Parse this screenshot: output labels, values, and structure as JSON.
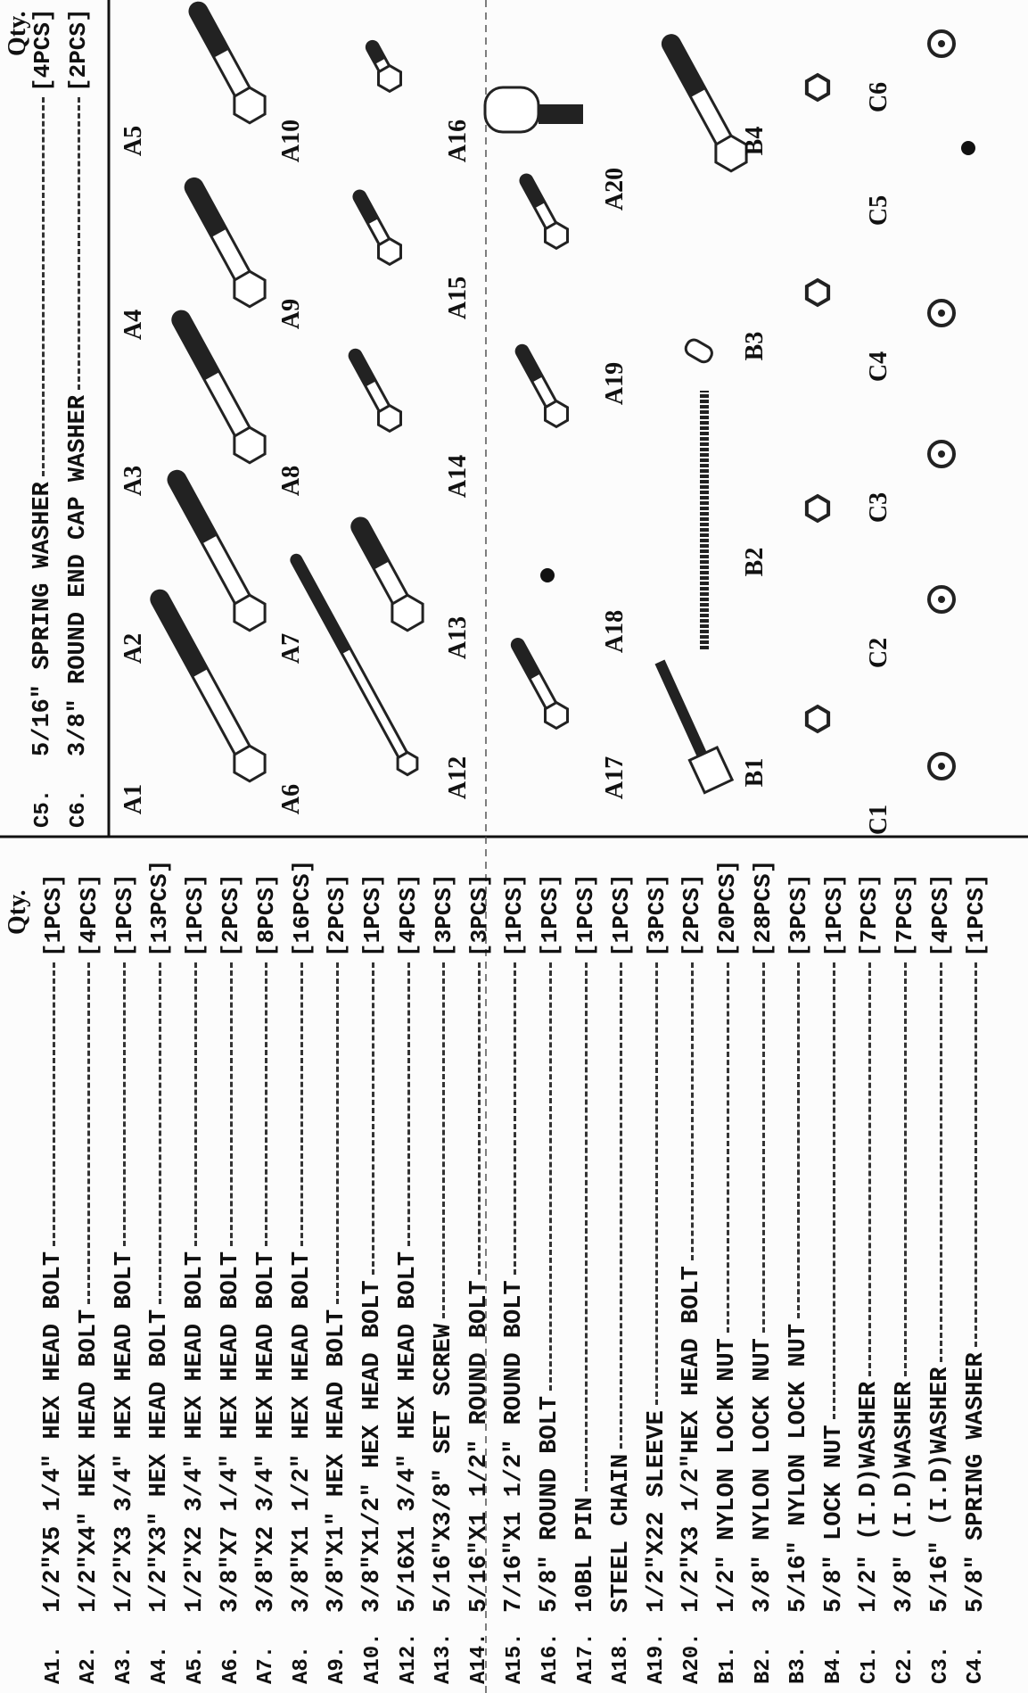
{
  "left": {
    "qty_header": "Qty.",
    "items": [
      {
        "code": "A1.",
        "desc": "1/2\"X5 1/4\" HEX HEAD BOLT",
        "qty": "[1PCS]"
      },
      {
        "code": "A2.",
        "desc": "1/2\"X4\" HEX HEAD BOLT",
        "qty": "[4PCS]"
      },
      {
        "code": "A3.",
        "desc": "1/2\"X3 3/4\" HEX HEAD BOLT",
        "qty": "[1PCS]"
      },
      {
        "code": "A4.",
        "desc": "1/2\"X3\" HEX HEAD BOLT",
        "qty": "[13PCS]"
      },
      {
        "code": "A5.",
        "desc": "1/2\"X2 3/4\" HEX HEAD BOLT",
        "qty": "[1PCS]"
      },
      {
        "code": "A6.",
        "desc": "3/8\"X7 1/4\" HEX HEAD BOLT",
        "qty": "[2PCS]"
      },
      {
        "code": "A7.",
        "desc": "3/8\"X2 3/4\" HEX HEAD BOLT",
        "qty": "[8PCS]"
      },
      {
        "code": "A8.",
        "desc": "3/8\"X1 1/2\" HEX HEAD BOLT",
        "qty": "[16PCS]"
      },
      {
        "code": "A9.",
        "desc": "3/8\"X1\" HEX HEAD BOLT",
        "qty": "[2PCS]"
      },
      {
        "code": "A10.",
        "desc": "3/8\"X1/2\" HEX HEAD BOLT",
        "qty": "[1PCS]"
      },
      {
        "code": "A12.",
        "desc": "5/16X1 3/4\" HEX HEAD BOLT",
        "qty": "[4PCS]"
      },
      {
        "code": "A13.",
        "desc": "5/16\"X3/8\" SET SCREW",
        "qty": "[3PCS]"
      },
      {
        "code": "A14.",
        "desc": "5/16\"X1 1/2\" ROUND BOLT",
        "qty": "[3PCS]"
      },
      {
        "code": "A15.",
        "desc": "7/16\"X1 1/2\" ROUND BOLT",
        "qty": "[1PCS]"
      },
      {
        "code": "A16.",
        "desc": "5/8\" ROUND BOLT",
        "qty": "[1PCS]"
      },
      {
        "code": "A17.",
        "desc": "10BL PIN",
        "qty": "[1PCS]"
      },
      {
        "code": "A18.",
        "desc": "STEEL CHAIN",
        "qty": "[1PCS]"
      },
      {
        "code": "A19.",
        "desc": "1/2\"X22 SLEEVE",
        "qty": "[3PCS]"
      },
      {
        "code": "A20.",
        "desc": "1/2\"X3 1/2\"HEX HEAD BOLT",
        "qty": "[2PCS]"
      },
      {
        "code": "B1.",
        "desc": "1/2\" NYLON LOCK NUT",
        "qty": "[20PCS]"
      },
      {
        "code": "B2.",
        "desc": "3/8\" NYLON LOCK NUT",
        "qty": "[28PCS]"
      },
      {
        "code": "B3.",
        "desc": "5/16\" NYLON LOCK NUT",
        "qty": "[3PCS]"
      },
      {
        "code": "B4.",
        "desc": "5/8\" LOCK NUT",
        "qty": "[1PCS]"
      },
      {
        "code": "C1.",
        "desc": "1/2\" (I.D)WASHER",
        "qty": "[7PCS]"
      },
      {
        "code": "C2.",
        "desc": "3/8\" (I.D)WASHER",
        "qty": "[7PCS]"
      },
      {
        "code": "C3.",
        "desc": "5/16\" (I.D)WASHER",
        "qty": "[4PCS]"
      },
      {
        "code": "C4.",
        "desc": "5/8\" SPRING WASHER",
        "qty": "[1PCS]"
      }
    ]
  },
  "right": {
    "qty_header": "Qty.",
    "items": [
      {
        "code": "C5.",
        "desc": "5/16\" SPRING WASHER",
        "qty": "[4PCS]"
      },
      {
        "code": "C6.",
        "desc": "3/8\" ROUND END CAP WASHER",
        "qty": "[2PCS]"
      }
    ],
    "parts": [
      [
        "A1",
        "A2",
        "A3",
        "A4",
        "A5"
      ],
      [
        "A6",
        "A7",
        "A8",
        "A9",
        "A10"
      ],
      [
        "A12",
        "A13",
        "A14",
        "A15",
        "A16"
      ],
      [
        "A17",
        "A18",
        "A19",
        "A20"
      ],
      [
        "B1",
        "B2",
        "B3",
        "B4"
      ],
      [
        "C1",
        "C2",
        "C3",
        "C4",
        "C5",
        "C6"
      ]
    ]
  }
}
